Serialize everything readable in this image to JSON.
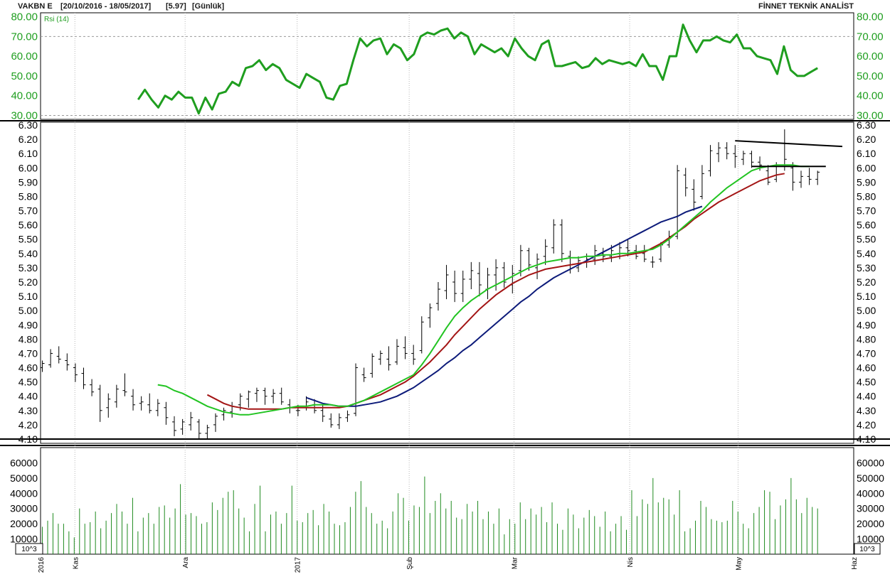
{
  "header": {
    "symbol": "VAKBN E",
    "range": "[20/10/2016 - 18/05/2017]",
    "last": "[5.97]",
    "period": "[Günlük]",
    "brand": "FİNNET TEKNİK ANALİST"
  },
  "colors": {
    "rsi": "#1f9e1f",
    "ma_green": "#22c422",
    "ma_red": "#a31515",
    "ma_blue": "#0d1b7a",
    "volume": "#1f8a1f",
    "bars": "#000000"
  },
  "chart_data": [
    {
      "panel": "rsi",
      "type": "line",
      "legend": "Rsi (14)",
      "ylim": [
        28,
        82
      ],
      "yticks": [
        "80.00",
        "70.00",
        "60.00",
        "50.00",
        "40.00",
        "30.00"
      ],
      "ref_lines": [
        70,
        30
      ],
      "x_range": [
        25,
        81
      ],
      "values": [
        38,
        43,
        38,
        34,
        40,
        38,
        42,
        39,
        39,
        31,
        39,
        33,
        41,
        42,
        47,
        45,
        54,
        55,
        58,
        53,
        56,
        54,
        48,
        46,
        44,
        51,
        49,
        47,
        39,
        38,
        45,
        46,
        58,
        69,
        65,
        68,
        69,
        61,
        66,
        64,
        58,
        61,
        70,
        72,
        71,
        73,
        74,
        69,
        72,
        70,
        61,
        66,
        64,
        62,
        64,
        60,
        69,
        64,
        60,
        58,
        66,
        68,
        55,
        55,
        56,
        57,
        54,
        55,
        59,
        56,
        58,
        57,
        56,
        57,
        55,
        61,
        55,
        55,
        48,
        60,
        60,
        76,
        68,
        62,
        68,
        68,
        70,
        68,
        67,
        71,
        64,
        64,
        60,
        59,
        58,
        51,
        65,
        53,
        50,
        50,
        52,
        54
      ]
    },
    {
      "panel": "price",
      "type": "bar",
      "ylim": [
        4.07,
        6.32
      ],
      "yticks": [
        "6.30",
        "6.20",
        "6.10",
        "6.00",
        "5.90",
        "5.80",
        "5.70",
        "5.60",
        "5.50",
        "5.40",
        "5.30",
        "5.20",
        "5.10",
        "5.00",
        "4.90",
        "4.80",
        "4.70",
        "4.60",
        "4.50",
        "4.40",
        "4.30",
        "4.20",
        "4.10"
      ],
      "support_line": 4.1,
      "ohlc": [
        [
          4.6,
          4.65,
          4.57,
          4.63
        ],
        [
          4.62,
          4.73,
          4.6,
          4.7
        ],
        [
          4.68,
          4.75,
          4.63,
          4.66
        ],
        [
          4.65,
          4.7,
          4.58,
          4.62
        ],
        [
          4.6,
          4.63,
          4.5,
          4.55
        ],
        [
          4.56,
          4.6,
          4.45,
          4.48
        ],
        [
          4.48,
          4.52,
          4.4,
          4.43
        ],
        [
          4.45,
          4.48,
          4.22,
          4.3
        ],
        [
          4.32,
          4.42,
          4.25,
          4.38
        ],
        [
          4.36,
          4.48,
          4.32,
          4.45
        ],
        [
          4.44,
          4.56,
          4.4,
          4.43
        ],
        [
          4.4,
          4.45,
          4.3,
          4.34
        ],
        [
          4.35,
          4.4,
          4.3,
          4.36
        ],
        [
          4.34,
          4.42,
          4.28,
          4.3
        ],
        [
          4.3,
          4.38,
          4.26,
          4.35
        ],
        [
          4.32,
          4.36,
          4.2,
          4.25
        ],
        [
          4.22,
          4.26,
          4.12,
          4.16
        ],
        [
          4.17,
          4.24,
          4.13,
          4.22
        ],
        [
          4.2,
          4.29,
          4.16,
          4.25
        ],
        [
          4.22,
          4.24,
          4.1,
          4.14
        ],
        [
          4.14,
          4.2,
          4.1,
          4.18
        ],
        [
          4.2,
          4.28,
          4.15,
          4.26
        ],
        [
          4.27,
          4.32,
          4.23,
          4.3
        ],
        [
          4.29,
          4.36,
          4.25,
          4.33
        ],
        [
          4.34,
          4.42,
          4.3,
          4.4
        ],
        [
          4.38,
          4.44,
          4.32,
          4.43
        ],
        [
          4.42,
          4.46,
          4.36,
          4.44
        ],
        [
          4.44,
          4.46,
          4.34,
          4.4
        ],
        [
          4.4,
          4.45,
          4.35,
          4.42
        ],
        [
          4.42,
          4.46,
          4.34,
          4.36
        ],
        [
          4.34,
          4.38,
          4.28,
          4.32
        ],
        [
          4.3,
          4.34,
          4.26,
          4.3
        ],
        [
          4.32,
          4.4,
          4.3,
          4.36
        ],
        [
          4.34,
          4.38,
          4.28,
          4.3
        ],
        [
          4.3,
          4.34,
          4.22,
          4.26
        ],
        [
          4.24,
          4.28,
          4.18,
          4.2
        ],
        [
          4.2,
          4.28,
          4.17,
          4.25
        ],
        [
          4.25,
          4.3,
          4.22,
          4.27
        ],
        [
          4.28,
          4.63,
          4.26,
          4.6
        ],
        [
          4.55,
          4.6,
          4.5,
          4.53
        ],
        [
          4.56,
          4.7,
          4.53,
          4.68
        ],
        [
          4.66,
          4.72,
          4.62,
          4.7
        ],
        [
          4.66,
          4.75,
          4.58,
          4.62
        ],
        [
          4.64,
          4.8,
          4.62,
          4.75
        ],
        [
          4.74,
          4.82,
          4.66,
          4.7
        ],
        [
          4.7,
          4.76,
          4.62,
          4.66
        ],
        [
          4.72,
          4.96,
          4.7,
          4.92
        ],
        [
          4.95,
          5.05,
          4.88,
          5.02
        ],
        [
          5.05,
          5.2,
          5.0,
          5.15
        ],
        [
          5.14,
          5.32,
          5.08,
          5.25
        ],
        [
          5.2,
          5.28,
          5.06,
          5.12
        ],
        [
          5.12,
          5.28,
          5.06,
          5.22
        ],
        [
          5.22,
          5.34,
          5.15,
          5.28
        ],
        [
          5.26,
          5.34,
          5.1,
          5.18
        ],
        [
          5.15,
          5.3,
          5.08,
          5.25
        ],
        [
          5.25,
          5.36,
          5.14,
          5.3
        ],
        [
          5.3,
          5.34,
          5.16,
          5.2
        ],
        [
          5.18,
          5.32,
          5.12,
          5.26
        ],
        [
          5.28,
          5.46,
          5.24,
          5.42
        ],
        [
          5.42,
          5.44,
          5.28,
          5.32
        ],
        [
          5.3,
          5.4,
          5.22,
          5.36
        ],
        [
          5.38,
          5.5,
          5.32,
          5.45
        ],
        [
          5.44,
          5.64,
          5.4,
          5.6
        ],
        [
          5.6,
          5.64,
          5.34,
          5.4
        ],
        [
          5.38,
          5.42,
          5.26,
          5.32
        ],
        [
          5.3,
          5.38,
          5.27,
          5.35
        ],
        [
          5.34,
          5.4,
          5.3,
          5.36
        ],
        [
          5.36,
          5.46,
          5.32,
          5.42
        ],
        [
          5.4,
          5.44,
          5.34,
          5.38
        ],
        [
          5.38,
          5.46,
          5.34,
          5.42
        ],
        [
          5.4,
          5.48,
          5.36,
          5.44
        ],
        [
          5.44,
          5.5,
          5.38,
          5.42
        ],
        [
          5.42,
          5.46,
          5.36,
          5.38
        ],
        [
          5.4,
          5.46,
          5.34,
          5.36
        ],
        [
          5.34,
          5.38,
          5.3,
          5.34
        ],
        [
          5.36,
          5.48,
          5.34,
          5.46
        ],
        [
          5.46,
          5.56,
          5.44,
          5.52
        ],
        [
          5.52,
          6.02,
          5.5,
          5.98
        ],
        [
          5.95,
          6.0,
          5.8,
          5.86
        ],
        [
          5.85,
          5.92,
          5.7,
          5.76
        ],
        [
          5.8,
          6.02,
          5.78,
          5.96
        ],
        [
          5.98,
          6.16,
          5.94,
          6.12
        ],
        [
          6.1,
          6.18,
          6.04,
          6.14
        ],
        [
          6.14,
          6.18,
          6.06,
          6.1
        ],
        [
          6.1,
          6.16,
          6.0,
          6.08
        ],
        [
          6.06,
          6.12,
          6.02,
          6.1
        ],
        [
          6.1,
          6.12,
          6.0,
          6.04
        ],
        [
          6.04,
          6.08,
          5.98,
          6.02
        ],
        [
          5.98,
          6.02,
          5.88,
          5.9
        ],
        [
          5.92,
          6.04,
          5.9,
          6.02
        ],
        [
          6.02,
          6.27,
          5.98,
          6.06
        ],
        [
          6.0,
          6.04,
          5.84,
          5.9
        ],
        [
          5.9,
          5.98,
          5.86,
          5.94
        ],
        [
          5.94,
          6.0,
          5.88,
          5.92
        ],
        [
          5.92,
          5.98,
          5.88,
          5.97
        ]
      ],
      "ma_green": [
        null,
        null,
        null,
        null,
        null,
        null,
        null,
        null,
        null,
        null,
        null,
        null,
        null,
        null,
        4.48,
        4.47,
        4.44,
        4.42,
        4.39,
        4.36,
        4.33,
        4.31,
        4.29,
        4.28,
        4.27,
        4.27,
        4.28,
        4.29,
        4.3,
        4.31,
        4.32,
        4.33,
        4.33,
        4.34,
        4.34,
        4.34,
        4.33,
        4.33,
        4.35,
        4.37,
        4.4,
        4.43,
        4.46,
        4.49,
        4.52,
        4.55,
        4.62,
        4.7,
        4.79,
        4.88,
        4.96,
        5.02,
        5.07,
        5.11,
        5.15,
        5.18,
        5.21,
        5.24,
        5.27,
        5.3,
        5.32,
        5.34,
        5.35,
        5.36,
        5.37,
        5.37,
        5.38,
        5.38,
        5.39,
        5.39,
        5.4,
        5.4,
        5.41,
        5.42,
        5.43,
        5.46,
        5.5,
        5.55,
        5.6,
        5.65,
        5.7,
        5.76,
        5.81,
        5.86,
        5.9,
        5.94,
        5.98,
        6.0,
        6.01,
        6.02,
        6.02,
        6.02,
        6.01,
        6.01
      ],
      "ma_red": [
        null,
        null,
        null,
        null,
        null,
        null,
        null,
        null,
        null,
        null,
        null,
        null,
        null,
        null,
        null,
        null,
        null,
        null,
        null,
        null,
        4.41,
        4.38,
        4.35,
        4.33,
        4.32,
        4.31,
        4.31,
        4.31,
        4.31,
        4.31,
        4.32,
        4.32,
        4.32,
        4.32,
        4.32,
        4.32,
        4.32,
        4.33,
        4.35,
        4.37,
        4.39,
        4.41,
        4.44,
        4.47,
        4.5,
        4.54,
        4.59,
        4.64,
        4.7,
        4.76,
        4.83,
        4.89,
        4.95,
        5.01,
        5.06,
        5.11,
        5.15,
        5.19,
        5.22,
        5.25,
        5.27,
        5.29,
        5.3,
        5.31,
        5.32,
        5.33,
        5.34,
        5.35,
        5.36,
        5.37,
        5.38,
        5.39,
        5.4,
        5.41,
        5.44,
        5.47,
        5.51,
        5.55,
        5.59,
        5.64,
        5.68,
        5.72,
        5.76,
        5.79,
        5.82,
        5.85,
        5.88,
        5.91,
        5.93,
        5.95,
        5.96
      ],
      "ma_blue": [
        null,
        null,
        null,
        null,
        null,
        null,
        null,
        null,
        null,
        null,
        null,
        null,
        null,
        null,
        null,
        null,
        null,
        null,
        null,
        null,
        null,
        null,
        null,
        null,
        null,
        null,
        null,
        null,
        null,
        null,
        null,
        null,
        4.39,
        4.37,
        4.35,
        4.34,
        4.33,
        4.33,
        4.33,
        4.34,
        4.35,
        4.36,
        4.38,
        4.4,
        4.43,
        4.46,
        4.5,
        4.54,
        4.58,
        4.63,
        4.67,
        4.72,
        4.76,
        4.81,
        4.86,
        4.91,
        4.96,
        5.01,
        5.06,
        5.1,
        5.15,
        5.19,
        5.23,
        5.26,
        5.29,
        5.32,
        5.35,
        5.38,
        5.41,
        5.44,
        5.47,
        5.5,
        5.53,
        5.56,
        5.59,
        5.62,
        5.64,
        5.66,
        5.69,
        5.71,
        5.73
      ],
      "triangle_pattern": {
        "upper": [
          [
            84,
            6.19
          ],
          [
            97,
            6.15
          ]
        ],
        "lower": [
          [
            86,
            6.01
          ],
          [
            95,
            6.01
          ]
        ]
      }
    },
    {
      "panel": "volume",
      "type": "bar",
      "unit": "10^3",
      "ylim": [
        0,
        70000
      ],
      "yticks": [
        "60000",
        "50000",
        "40000",
        "30000",
        "20000",
        "10000"
      ],
      "values": [
        18000,
        22000,
        27000,
        20000,
        20000,
        15000,
        11000,
        30000,
        20000,
        21000,
        28000,
        17000,
        22000,
        27000,
        33000,
        28000,
        20000,
        37000,
        15000,
        24000,
        27000,
        20000,
        31000,
        32000,
        24000,
        30000,
        46000,
        26000,
        27000,
        25000,
        20000,
        21000,
        34000,
        29000,
        37000,
        41000,
        42000,
        30000,
        24000,
        15000,
        33000,
        45000,
        15000,
        26000,
        28000,
        20000,
        27000,
        45000,
        22000,
        21000,
        27000,
        29000,
        19000,
        33000,
        28000,
        20000,
        19000,
        21000,
        31000,
        41000,
        48000,
        31000,
        27000,
        20000,
        22000,
        17000,
        28000,
        40000,
        37000,
        22000,
        32000,
        31000,
        51000,
        27000,
        35000,
        40000,
        30000,
        35000,
        24000,
        23000,
        33000,
        28000,
        35000,
        23000,
        28000,
        20000,
        30000,
        13000,
        23000,
        20000,
        34000,
        23000,
        30000,
        26000,
        31000,
        21000,
        34000,
        20000,
        16000,
        30000,
        26000,
        17000,
        24000,
        29000,
        25000,
        18000,
        28000,
        15000,
        20000,
        25000,
        16000,
        42000,
        25000,
        36000,
        33000,
        50000,
        34000,
        37000,
        36000,
        26000,
        42000,
        15000,
        17000,
        22000,
        35000,
        31000,
        23000,
        22000,
        21000,
        22000,
        35000,
        28000,
        20000,
        17000,
        27000,
        31000,
        42000,
        41000,
        23000,
        32000,
        36000,
        50000,
        36000,
        27000,
        37000,
        31000,
        30000
      ]
    }
  ],
  "x_axis": {
    "labels": [
      {
        "text": "2016",
        "t": 0
      },
      {
        "text": "Kas",
        "t": 9.5
      },
      {
        "text": "Ara",
        "t": 40
      },
      {
        "text": "2017",
        "t": 71
      },
      {
        "text": "Şub",
        "t": 102
      },
      {
        "text": "Mar",
        "t": 131
      },
      {
        "text": "Nis",
        "t": 163
      },
      {
        "text": "May",
        "t": 193
      },
      {
        "text": "Haz",
        "t": 225
      }
    ],
    "t_max": 225
  },
  "rsi_label": "Rsi (14)",
  "volume_unit_label": "10^3"
}
